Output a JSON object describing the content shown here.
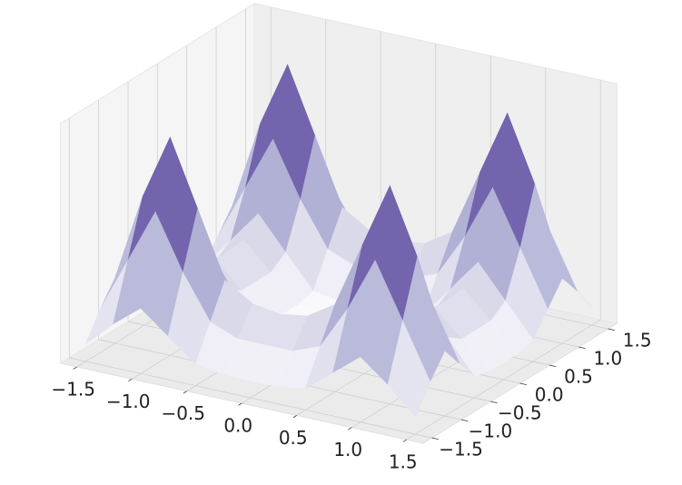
{
  "chart_data": {
    "type": "surface3d",
    "x": [
      -1.5,
      -1.25,
      -1.0,
      -0.75,
      -0.5,
      -0.25,
      0,
      0.25,
      0.5,
      0.75,
      1.0,
      1.25,
      1.5
    ],
    "y": [
      -1.5,
      -1.25,
      -1.0,
      -0.75,
      -0.5,
      -0.25,
      0,
      0.25,
      0.5,
      0.75,
      1.0,
      1.25,
      1.5
    ],
    "z": [
      [
        0.08,
        0.2,
        0.3,
        0.2,
        0.1,
        0.08,
        0.08,
        0.08,
        0.1,
        0.2,
        0.3,
        0.2,
        0.08
      ],
      [
        0.2,
        0.45,
        0.7,
        0.45,
        0.25,
        0.2,
        0.2,
        0.2,
        0.25,
        0.45,
        0.7,
        0.45,
        0.2
      ],
      [
        0.3,
        0.7,
        1.0,
        0.7,
        0.4,
        0.32,
        0.3,
        0.32,
        0.4,
        0.7,
        1.0,
        0.7,
        0.3
      ],
      [
        0.2,
        0.45,
        0.7,
        0.45,
        0.25,
        0.2,
        0.2,
        0.2,
        0.25,
        0.45,
        0.7,
        0.45,
        0.2
      ],
      [
        0.1,
        0.25,
        0.4,
        0.25,
        0.1,
        0.08,
        0.08,
        0.08,
        0.1,
        0.25,
        0.4,
        0.25,
        0.1
      ],
      [
        0.08,
        0.2,
        0.32,
        0.2,
        0.08,
        0.05,
        0.05,
        0.05,
        0.08,
        0.2,
        0.32,
        0.2,
        0.08
      ],
      [
        0.08,
        0.2,
        0.3,
        0.2,
        0.08,
        0.05,
        0.05,
        0.05,
        0.08,
        0.2,
        0.3,
        0.2,
        0.08
      ],
      [
        0.08,
        0.2,
        0.32,
        0.2,
        0.08,
        0.05,
        0.05,
        0.05,
        0.08,
        0.2,
        0.32,
        0.2,
        0.08
      ],
      [
        0.1,
        0.25,
        0.4,
        0.25,
        0.1,
        0.08,
        0.08,
        0.08,
        0.1,
        0.25,
        0.4,
        0.25,
        0.1
      ],
      [
        0.2,
        0.45,
        0.7,
        0.45,
        0.25,
        0.2,
        0.2,
        0.2,
        0.25,
        0.45,
        0.7,
        0.45,
        0.2
      ],
      [
        0.3,
        0.7,
        1.0,
        0.7,
        0.4,
        0.32,
        0.3,
        0.32,
        0.4,
        0.7,
        1.0,
        0.7,
        0.3
      ],
      [
        0.2,
        0.45,
        0.7,
        0.45,
        0.25,
        0.2,
        0.2,
        0.2,
        0.25,
        0.45,
        0.7,
        0.45,
        0.2
      ],
      [
        0.08,
        0.2,
        0.3,
        0.2,
        0.1,
        0.08,
        0.08,
        0.08,
        0.1,
        0.2,
        0.3,
        0.2,
        0.08
      ]
    ],
    "xlim": [
      -1.65,
      1.65
    ],
    "ylim": [
      -1.65,
      1.65
    ],
    "zlim": [
      0,
      1.1
    ],
    "xticks": [
      {
        "value": -1.5,
        "label": "−1.5"
      },
      {
        "value": -1.0,
        "label": "−1.0"
      },
      {
        "value": -0.5,
        "label": "−0.5"
      },
      {
        "value": 0,
        "label": "0.0"
      },
      0.5,
      {
        "value": 1.0,
        "label": "1.0"
      },
      1.5
    ],
    "yticks": [
      {
        "value": -1.5,
        "label": "−1.5"
      },
      {
        "value": -1.0,
        "label": "−1.0"
      },
      {
        "value": -0.5,
        "label": "−0.5"
      },
      {
        "value": 0,
        "label": "0.0"
      },
      0.5,
      {
        "value": 1.0,
        "label": "1.0"
      },
      1.5
    ],
    "grid": true,
    "colormap": [
      "#fcfbfd",
      "#efedf5",
      "#dadaeb",
      "#bcbddc",
      "#9e9ac8",
      "#807dba",
      "#6a51a3",
      "#54278f",
      "#3f007d"
    ]
  }
}
